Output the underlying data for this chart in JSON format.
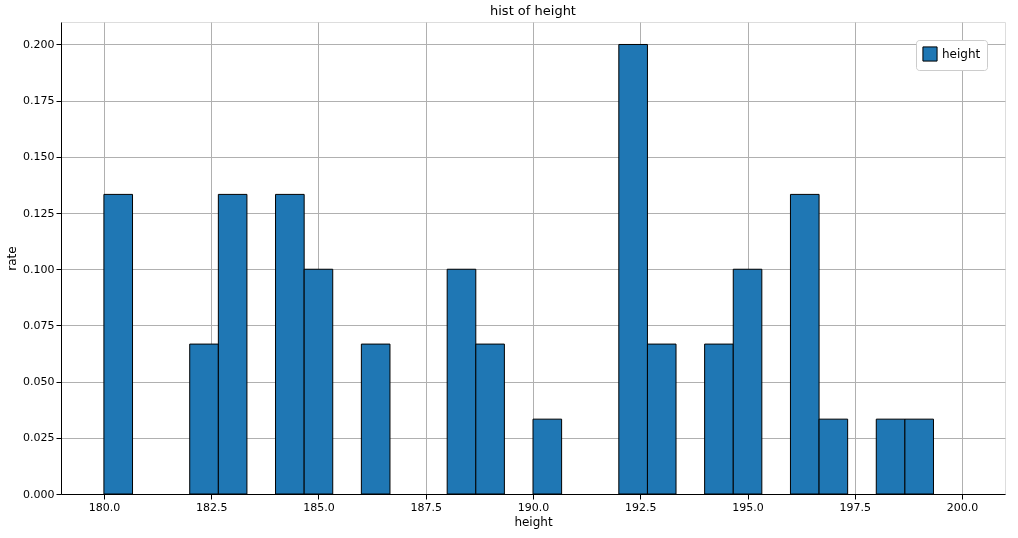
{
  "chart_data": {
    "type": "histogram",
    "title": "hist of height",
    "xlabel": "height",
    "ylabel": "rate",
    "bins": [
      180,
      180.667,
      181.333,
      182,
      182.667,
      183.333,
      184,
      184.667,
      185.333,
      186,
      186.667,
      187.333,
      188,
      188.667,
      189.333,
      190,
      190.667,
      191.333,
      192,
      192.667,
      193.333,
      194,
      194.667,
      195.333,
      196,
      196.667,
      197.333,
      198,
      198.667,
      199.333,
      200
    ],
    "series": [
      {
        "name": "height",
        "color": "#1f77b4",
        "values": [
          0.1333,
          0,
          0,
          0.0667,
          0.1333,
          0,
          0.1333,
          0.1,
          0,
          0.0667,
          0,
          0,
          0.1,
          0.0667,
          0,
          0.0333,
          0,
          0,
          0.2,
          0.0667,
          0,
          0.0667,
          0.1,
          0,
          0.1333,
          0.0333,
          0,
          0.0333,
          0.0333,
          0
        ]
      }
    ],
    "xlim": [
      179,
      201
    ],
    "xticks": [
      {
        "value": 180,
        "label": "180.0"
      },
      {
        "value": 182.5,
        "label": "182.5"
      },
      {
        "value": 185,
        "label": "185.0"
      },
      {
        "value": 187.5,
        "label": "187.5"
      },
      {
        "value": 190,
        "label": "190.0"
      },
      {
        "value": 192.5,
        "label": "192.5"
      },
      {
        "value": 195,
        "label": "195.0"
      },
      {
        "value": 197.5,
        "label": "197.5"
      },
      {
        "value": 200,
        "label": "200.0"
      }
    ],
    "ylim": [
      0,
      0.21
    ],
    "yticks": [
      {
        "value": 0,
        "label": "0.000"
      },
      {
        "value": 0.025,
        "label": "0.025"
      },
      {
        "value": 0.05,
        "label": "0.050"
      },
      {
        "value": 0.075,
        "label": "0.075"
      },
      {
        "value": 0.1,
        "label": "0.100"
      },
      {
        "value": 0.125,
        "label": "0.125"
      },
      {
        "value": 0.15,
        "label": "0.150"
      },
      {
        "value": 0.175,
        "label": "0.175"
      },
      {
        "value": 0.2,
        "label": "0.200"
      }
    ],
    "grid": true,
    "legend": "top right"
  }
}
